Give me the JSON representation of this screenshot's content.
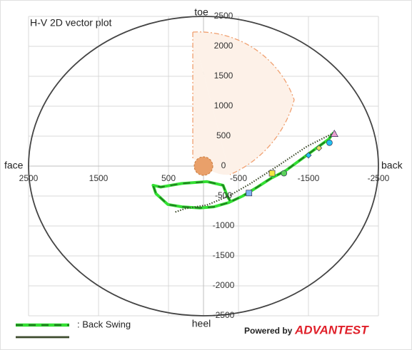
{
  "chart_data": {
    "type": "line",
    "title": "H-V 2D vector plot",
    "direction_labels": {
      "top": "toe",
      "bottom": "heel",
      "left": "face",
      "right": "back"
    },
    "brand": {
      "prefix": "Powered by",
      "name": "ADVANTEST"
    },
    "xlim": [
      2500,
      -2500
    ],
    "ylim": [
      -2500,
      2500
    ],
    "xticks": [
      2500,
      1500,
      500,
      -500,
      -1500,
      -2500
    ],
    "yticks": [
      2500,
      2000,
      1500,
      1000,
      500,
      0,
      -500,
      -1000,
      -1500,
      -2000,
      -2500
    ],
    "grid": true,
    "series": [
      {
        "name": ": Back Swing",
        "color": "#33e033",
        "style": "dashed",
        "x": [
          -1860,
          -1790,
          -1580,
          -1380,
          -1170,
          -970,
          -770,
          -560,
          -360,
          -150,
          50,
          310,
          510,
          680,
          720,
          610,
          310,
          -50,
          -280,
          -340,
          -380
        ],
        "y": [
          560,
          450,
          270,
          100,
          -80,
          -200,
          -350,
          -500,
          -610,
          -680,
          -700,
          -680,
          -640,
          -460,
          -320,
          -350,
          -290,
          -260,
          -320,
          -500,
          -580
        ]
      },
      {
        "color": "#3d4a2c",
        "style": "dotted",
        "x": [
          -1890,
          -1480,
          -1070,
          -660,
          -360,
          -50,
          260,
          410
        ],
        "y": [
          570,
          330,
          10,
          -300,
          -500,
          -650,
          -710,
          -770
        ]
      }
    ],
    "markers": [
      {
        "x": -1870,
        "y": 540,
        "color": "#e9a0d0",
        "shape": "triangle"
      },
      {
        "x": -1800,
        "y": 390,
        "color": "#22c0f0",
        "shape": "circle"
      },
      {
        "x": -1650,
        "y": 300,
        "color": "#e8e060",
        "shape": "diamond"
      },
      {
        "x": -1500,
        "y": 180,
        "color": "#22c0f0",
        "shape": "diamond"
      },
      {
        "x": -1150,
        "y": -120,
        "color": "#5ad35a",
        "shape": "circle"
      },
      {
        "x": -980,
        "y": -120,
        "color": "#f5e840",
        "shape": "square"
      },
      {
        "x": -650,
        "y": -450,
        "color": "#7fb0f0",
        "shape": "square"
      }
    ]
  }
}
